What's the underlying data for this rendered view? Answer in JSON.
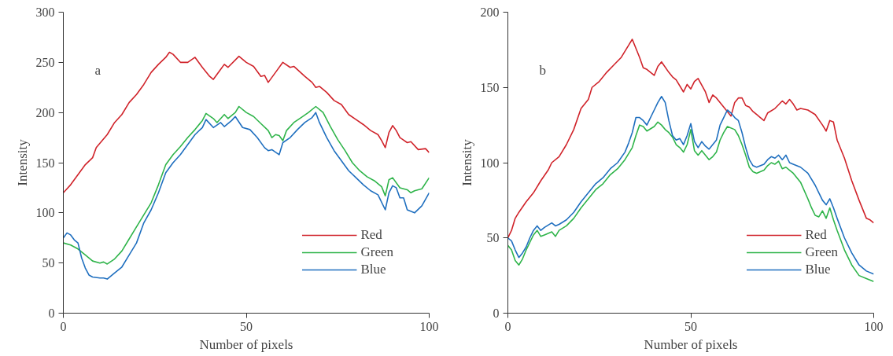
{
  "chart_data": [
    {
      "type": "line",
      "annotations": [
        "a"
      ],
      "xlabel": "Number of pixels",
      "ylabel": "Intensity",
      "xlim": [
        0,
        100
      ],
      "xticks": [
        0,
        50,
        100
      ],
      "ylim": [
        0,
        300
      ],
      "yticks": [
        0,
        50,
        100,
        150,
        200,
        250,
        300
      ],
      "grid": false,
      "legend": "bottom right",
      "marker": "none",
      "line_style": "solid",
      "series": [
        {
          "name": "Red",
          "color": "#d0232a",
          "x": [
            0,
            2,
            4,
            6,
            8,
            9,
            12,
            14,
            16,
            18,
            20,
            22,
            24,
            26,
            28,
            29,
            30,
            32,
            34,
            36,
            38,
            40,
            41,
            43,
            44,
            45,
            48,
            50,
            52,
            54,
            55,
            56,
            58,
            60,
            62,
            63,
            66,
            68,
            69,
            70,
            72,
            74,
            76,
            78,
            80,
            82,
            84,
            86,
            87,
            88,
            89,
            90,
            91,
            92,
            94,
            95,
            97,
            99,
            100
          ],
          "values": [
            120,
            128,
            138,
            148,
            155,
            165,
            178,
            190,
            198,
            210,
            218,
            228,
            240,
            248,
            255,
            260,
            258,
            250,
            250,
            255,
            245,
            236,
            233,
            243,
            248,
            245,
            256,
            250,
            246,
            236,
            237,
            230,
            240,
            250,
            245,
            246,
            236,
            230,
            225,
            226,
            220,
            212,
            208,
            198,
            193,
            188,
            182,
            178,
            172,
            165,
            180,
            187,
            182,
            175,
            170,
            171,
            163,
            164,
            160
          ]
        },
        {
          "name": "Green",
          "color": "#2fb44a",
          "x": [
            0,
            2,
            4,
            6,
            8,
            10,
            11,
            12,
            14,
            16,
            18,
            20,
            22,
            24,
            26,
            28,
            30,
            32,
            34,
            36,
            38,
            39,
            41,
            42,
            44,
            45,
            47,
            48,
            50,
            52,
            54,
            56,
            57,
            58,
            59,
            60,
            61,
            63,
            65,
            67,
            69,
            71,
            73,
            75,
            77,
            79,
            81,
            83,
            85,
            87,
            88,
            89,
            90,
            92,
            94,
            95,
            96,
            98,
            100
          ],
          "values": [
            70,
            68,
            64,
            58,
            52,
            50,
            51,
            49,
            54,
            62,
            74,
            86,
            98,
            110,
            128,
            148,
            158,
            166,
            175,
            183,
            192,
            199,
            194,
            190,
            198,
            194,
            200,
            206,
            200,
            196,
            189,
            182,
            175,
            178,
            177,
            172,
            182,
            190,
            195,
            200,
            206,
            200,
            186,
            173,
            162,
            150,
            142,
            136,
            132,
            126,
            117,
            133,
            135,
            125,
            123,
            120,
            122,
            124,
            135
          ]
        },
        {
          "name": "Blue",
          "color": "#1f6fbf",
          "x": [
            0,
            1,
            2,
            3,
            4,
            5,
            6,
            7,
            8,
            10,
            11,
            12,
            14,
            16,
            18,
            20,
            22,
            24,
            26,
            28,
            30,
            32,
            34,
            36,
            38,
            39,
            41,
            43,
            44,
            46,
            47,
            49,
            51,
            53,
            55,
            56,
            57,
            59,
            60,
            62,
            64,
            66,
            68,
            69,
            70,
            72,
            74,
            76,
            78,
            80,
            82,
            84,
            86,
            88,
            89,
            90,
            91,
            92,
            93,
            94,
            96,
            98,
            100
          ],
          "values": [
            75,
            80,
            78,
            73,
            70,
            55,
            45,
            38,
            36,
            35,
            35,
            34,
            40,
            46,
            58,
            70,
            90,
            103,
            120,
            140,
            150,
            158,
            168,
            178,
            185,
            193,
            185,
            190,
            186,
            192,
            196,
            185,
            183,
            175,
            165,
            162,
            163,
            158,
            170,
            175,
            183,
            190,
            195,
            200,
            190,
            175,
            162,
            152,
            142,
            135,
            128,
            122,
            118,
            103,
            120,
            127,
            125,
            115,
            115,
            103,
            100,
            107,
            120
          ]
        }
      ]
    },
    {
      "type": "line",
      "annotations": [
        "b"
      ],
      "xlabel": "Number of pixels",
      "ylabel": "Intensity",
      "xlim": [
        0,
        100
      ],
      "xticks": [
        0,
        50,
        100
      ],
      "ylim": [
        0,
        200
      ],
      "yticks": [
        0,
        50,
        100,
        150,
        200
      ],
      "grid": false,
      "legend": "bottom right",
      "marker": "none",
      "line_style": "solid",
      "series": [
        {
          "name": "Red",
          "color": "#d0232a",
          "x": [
            0,
            1,
            2,
            3,
            5,
            7,
            9,
            11,
            12,
            14,
            16,
            18,
            20,
            22,
            23,
            25,
            27,
            29,
            31,
            33,
            34,
            35,
            36,
            37,
            38,
            40,
            41,
            42,
            44,
            45,
            46,
            48,
            49,
            50,
            51,
            52,
            54,
            55,
            56,
            57,
            59,
            60,
            61,
            62,
            63,
            64,
            65,
            66,
            67,
            68,
            69,
            70,
            71,
            73,
            75,
            76,
            77,
            78,
            79,
            80,
            82,
            84,
            86,
            87,
            88,
            89,
            90,
            92,
            94,
            96,
            98,
            99,
            100
          ],
          "values": [
            50,
            55,
            63,
            67,
            74,
            80,
            88,
            95,
            100,
            104,
            112,
            122,
            136,
            142,
            150,
            154,
            160,
            165,
            170,
            178,
            182,
            176,
            170,
            163,
            162,
            158,
            164,
            167,
            160,
            157,
            155,
            147,
            152,
            149,
            154,
            156,
            147,
            140,
            145,
            143,
            137,
            134,
            131,
            140,
            143,
            143,
            138,
            137,
            134,
            132,
            130,
            128,
            133,
            136,
            141,
            139,
            142,
            139,
            135,
            136,
            135,
            132,
            125,
            121,
            128,
            127,
            115,
            103,
            88,
            75,
            63,
            62,
            60
          ]
        },
        {
          "name": "Green",
          "color": "#2fb44a",
          "x": [
            0,
            1,
            2,
            3,
            4,
            5,
            6,
            7,
            8,
            9,
            10,
            12,
            13,
            14,
            16,
            18,
            20,
            22,
            24,
            26,
            28,
            30,
            32,
            34,
            35,
            36,
            37,
            38,
            40,
            41,
            42,
            43,
            44,
            45,
            46,
            47,
            48,
            49,
            50,
            51,
            52,
            53,
            54,
            55,
            56,
            57,
            58,
            59,
            60,
            62,
            63,
            64,
            65,
            66,
            67,
            68,
            70,
            71,
            72,
            73,
            74,
            75,
            76,
            77,
            78,
            80,
            82,
            83,
            84,
            85,
            86,
            87,
            88,
            89,
            90,
            92,
            94,
            96,
            98,
            100
          ],
          "values": [
            45,
            42,
            35,
            32,
            36,
            42,
            47,
            52,
            55,
            51,
            52,
            54,
            51,
            55,
            58,
            63,
            70,
            76,
            82,
            86,
            92,
            96,
            102,
            110,
            118,
            125,
            124,
            121,
            124,
            127,
            125,
            122,
            120,
            117,
            112,
            110,
            107,
            112,
            122,
            108,
            105,
            108,
            105,
            102,
            104,
            107,
            115,
            120,
            124,
            122,
            118,
            112,
            105,
            97,
            94,
            93,
            95,
            98,
            100,
            99,
            101,
            96,
            97,
            95,
            93,
            87,
            76,
            70,
            65,
            64,
            68,
            63,
            70,
            62,
            55,
            42,
            32,
            25,
            23,
            21
          ]
        },
        {
          "name": "Blue",
          "color": "#1f6fbf",
          "x": [
            0,
            1,
            2,
            3,
            4,
            5,
            6,
            7,
            8,
            9,
            10,
            12,
            13,
            14,
            16,
            18,
            20,
            22,
            24,
            26,
            28,
            30,
            32,
            33,
            34,
            35,
            36,
            37,
            38,
            40,
            41,
            42,
            43,
            44,
            45,
            46,
            47,
            48,
            49,
            50,
            51,
            52,
            53,
            54,
            55,
            56,
            57,
            58,
            59,
            60,
            61,
            62,
            63,
            64,
            65,
            66,
            67,
            68,
            70,
            71,
            72,
            73,
            74,
            75,
            76,
            77,
            78,
            80,
            82,
            84,
            85,
            86,
            87,
            88,
            89,
            90,
            92,
            94,
            96,
            98,
            100
          ],
          "values": [
            50,
            48,
            42,
            37,
            40,
            44,
            50,
            55,
            58,
            55,
            57,
            60,
            58,
            59,
            62,
            67,
            74,
            80,
            86,
            90,
            96,
            100,
            107,
            113,
            120,
            130,
            130,
            128,
            125,
            135,
            140,
            144,
            140,
            128,
            118,
            115,
            116,
            112,
            118,
            126,
            114,
            110,
            114,
            111,
            109,
            112,
            115,
            125,
            130,
            135,
            133,
            130,
            128,
            120,
            110,
            102,
            98,
            97,
            99,
            102,
            104,
            103,
            105,
            102,
            105,
            100,
            99,
            97,
            93,
            85,
            80,
            75,
            72,
            76,
            70,
            63,
            50,
            40,
            32,
            28,
            26
          ]
        }
      ]
    }
  ]
}
